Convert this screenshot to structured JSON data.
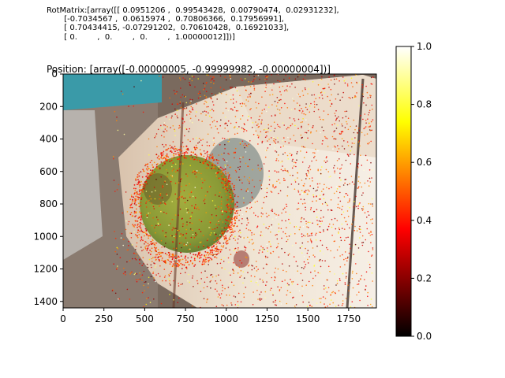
{
  "header": {
    "rot_matrix": "RotMatrix:[array([[ 0.0951206 ,  0.99543428,  0.00790474,  0.02931232],\n       [-0.7034567 ,  0.0615974 ,  0.70806366,  0.17956991],\n       [ 0.70434415, -0.07291202,  0.70610428,  0.16921033],\n       [ 0.        ,  0.        ,  0.        ,  1.00000012]])]",
    "position": "Position: [array([-0.00000005, -0.99999982, -0.00000004])]"
  },
  "chart_data": {
    "type": "scatter",
    "description_of_points": "colored depth/confidence points overlaid on a photo",
    "title": "",
    "xlabel": "",
    "ylabel": "",
    "xlim": [
      0,
      1920
    ],
    "ylim": [
      1440,
      0
    ],
    "x_ticks": [
      "0",
      "250",
      "500",
      "750",
      "1000",
      "1250",
      "1500",
      "1750"
    ],
    "x_tick_values": [
      0,
      250,
      500,
      750,
      1000,
      1250,
      1500,
      1750
    ],
    "y_ticks": [
      "0",
      "200",
      "400",
      "600",
      "800",
      "1000",
      "1200",
      "1400"
    ],
    "y_tick_values": [
      0,
      200,
      400,
      600,
      800,
      1000,
      1200,
      1400
    ],
    "colorbar": {
      "colormap": "hot",
      "range": [
        0.0,
        1.0
      ],
      "ticks": [
        "0.0",
        "0.2",
        "0.4",
        "0.6",
        "0.8",
        "1.0"
      ],
      "tick_values": [
        0.0,
        0.2,
        0.4,
        0.6,
        0.8,
        1.0
      ]
    },
    "regions": [
      {
        "name": "tabletop",
        "color": "#e9dcc8"
      },
      {
        "name": "green-apple",
        "center": [
          740,
          820
        ],
        "rx": 200,
        "ry": 230,
        "color": "#8fa040"
      },
      {
        "name": "teal-object",
        "center": [
          100,
          60
        ],
        "color": "#3a9aa8"
      },
      {
        "name": "left-floor",
        "color": "#7c6b5f"
      }
    ]
  }
}
